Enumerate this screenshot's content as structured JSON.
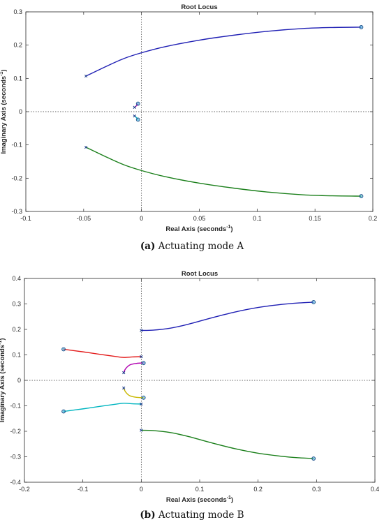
{
  "chart_data": [
    {
      "type": "line",
      "title": "Root Locus",
      "xlabel": "Real Axis (seconds",
      "xlabel_sup": "-1",
      "xlabel_close": ")",
      "ylabel": "Imaginary Axis (seconds",
      "ylabel_sup": "-1",
      "ylabel_close": ")",
      "xlim": [
        -0.1,
        0.2
      ],
      "ylim": [
        -0.3,
        0.3
      ],
      "xticks": [
        -0.1,
        -0.05,
        0,
        0.05,
        0.1,
        0.15,
        0.2
      ],
      "xtick_labels": [
        "-0.1",
        "-0.05",
        "0",
        "0.05",
        "0.1",
        "0.15",
        "0.2"
      ],
      "yticks": [
        -0.3,
        -0.2,
        -0.1,
        0,
        0.1,
        0.2,
        0.3
      ],
      "ytick_labels": [
        "-0.3",
        "-0.2",
        "-0.1",
        "0",
        "0.1",
        "0.2",
        "0.3"
      ],
      "grid": false,
      "series": [
        {
          "color": "#1f1fb4",
          "x": [
            -0.048,
            -0.03,
            -0.015,
            0,
            0.02,
            0.05,
            0.08,
            0.11,
            0.14,
            0.165,
            0.19
          ],
          "y": [
            0.107,
            0.137,
            0.16,
            0.177,
            0.195,
            0.215,
            0.23,
            0.242,
            0.25,
            0.253,
            0.254
          ]
        },
        {
          "color": "#1a7f1a",
          "x": [
            -0.048,
            -0.03,
            -0.015,
            0,
            0.02,
            0.05,
            0.08,
            0.11,
            0.14,
            0.165,
            0.19
          ],
          "y": [
            -0.107,
            -0.137,
            -0.16,
            -0.177,
            -0.195,
            -0.215,
            -0.23,
            -0.242,
            -0.25,
            -0.253,
            -0.254
          ]
        },
        {
          "color": "#b000b0",
          "x": [
            -0.006,
            -0.004,
            -0.003
          ],
          "y": [
            0.013,
            0.019,
            0.024
          ]
        },
        {
          "color": "#00b5c0",
          "x": [
            -0.006,
            -0.004,
            -0.003
          ],
          "y": [
            -0.013,
            -0.019,
            -0.024
          ]
        }
      ],
      "zeros": [
        [
          0.19,
          0.254
        ],
        [
          0.19,
          -0.254
        ],
        [
          -0.003,
          0.024
        ],
        [
          -0.003,
          -0.024
        ]
      ],
      "poles": [
        [
          -0.048,
          0.107
        ],
        [
          -0.048,
          -0.107
        ],
        [
          -0.006,
          0.013
        ],
        [
          -0.006,
          -0.013
        ]
      ],
      "caption_label": "(a)",
      "caption_text": " Actuating mode A"
    },
    {
      "type": "line",
      "title": "Root Locus",
      "xlabel": "Real Axis (seconds",
      "xlabel_sup": "-1",
      "xlabel_close": ")",
      "ylabel": "Imaginary Axis (seconds",
      "ylabel_sup": "-1",
      "ylabel_close": ")",
      "xlim": [
        -0.2,
        0.4
      ],
      "ylim": [
        -0.4,
        0.4
      ],
      "xticks": [
        -0.2,
        -0.1,
        0,
        0.1,
        0.2,
        0.3,
        0.4
      ],
      "xtick_labels": [
        "-0.2",
        "-0.1",
        "0",
        "0.1",
        "0.2",
        "0.3",
        "0.4"
      ],
      "yticks": [
        -0.4,
        -0.3,
        -0.2,
        -0.1,
        0,
        0.1,
        0.2,
        0.3,
        0.4
      ],
      "ytick_labels": [
        "-0.4",
        "-0.3",
        "-0.2",
        "-0.1",
        "0",
        "0.1",
        "0.2",
        "0.3",
        "0.4"
      ],
      "grid": false,
      "series": [
        {
          "color": "#1f1fb4",
          "x": [
            0,
            0.02,
            0.05,
            0.08,
            0.12,
            0.16,
            0.2,
            0.24,
            0.27,
            0.295
          ],
          "y": [
            0.196,
            0.197,
            0.205,
            0.22,
            0.245,
            0.268,
            0.286,
            0.298,
            0.304,
            0.307
          ]
        },
        {
          "color": "#1a7f1a",
          "x": [
            0,
            0.02,
            0.05,
            0.08,
            0.12,
            0.16,
            0.2,
            0.24,
            0.27,
            0.295
          ],
          "y": [
            -0.196,
            -0.197,
            -0.205,
            -0.22,
            -0.245,
            -0.268,
            -0.286,
            -0.298,
            -0.304,
            -0.307
          ]
        },
        {
          "color": "#e31a1a",
          "x": [
            -0.133,
            -0.1,
            -0.07,
            -0.045,
            -0.03,
            -0.015,
            0
          ],
          "y": [
            0.122,
            0.112,
            0.102,
            0.094,
            0.09,
            0.092,
            0.093
          ]
        },
        {
          "color": "#00b5c0",
          "x": [
            -0.133,
            -0.1,
            -0.07,
            -0.045,
            -0.03,
            -0.015,
            0
          ],
          "y": [
            -0.122,
            -0.112,
            -0.102,
            -0.094,
            -0.09,
            -0.092,
            -0.093
          ]
        },
        {
          "color": "#b000b0",
          "x": [
            -0.03,
            -0.027,
            -0.02,
            -0.01,
            0.0,
            0.004
          ],
          "y": [
            0.03,
            0.045,
            0.06,
            0.066,
            0.068,
            0.068
          ]
        },
        {
          "color": "#c9b800",
          "x": [
            -0.03,
            -0.027,
            -0.02,
            -0.01,
            0.0,
            0.004
          ],
          "y": [
            -0.03,
            -0.045,
            -0.06,
            -0.066,
            -0.068,
            -0.068
          ]
        }
      ],
      "zeros": [
        [
          0.295,
          0.307
        ],
        [
          0.295,
          -0.307
        ],
        [
          -0.133,
          0.122
        ],
        [
          -0.133,
          -0.122
        ],
        [
          0.004,
          0.068
        ],
        [
          0.004,
          -0.068
        ]
      ],
      "poles": [
        [
          0,
          0.196
        ],
        [
          0,
          -0.196
        ],
        [
          0,
          0.093
        ],
        [
          0,
          -0.093
        ],
        [
          -0.03,
          0.03
        ],
        [
          -0.03,
          -0.03
        ]
      ],
      "caption_label": "(b)",
      "caption_text": " Actuating mode B"
    }
  ]
}
